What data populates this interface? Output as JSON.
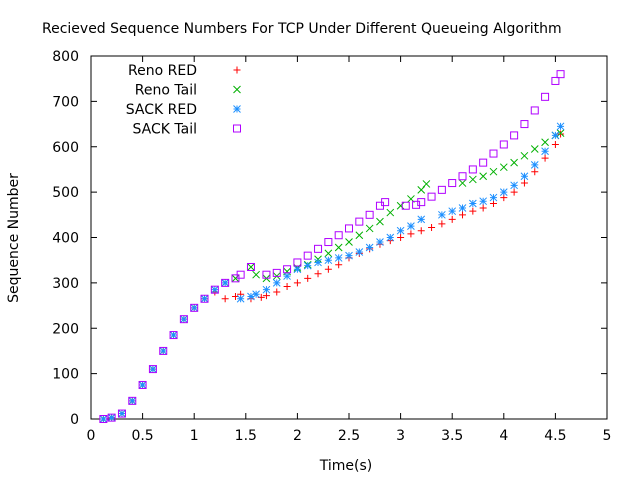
{
  "chart_data": {
    "type": "scatter",
    "title": "Recieved Sequence Numbers For TCP Under Different Queueing Algorithm",
    "xlabel": "Time(s)",
    "ylabel": "Sequence Number",
    "xlim": [
      0,
      5
    ],
    "ylim": [
      0,
      800
    ],
    "xticks": [
      "0",
      "0.5",
      "1",
      "1.5",
      "2",
      "2.5",
      "3",
      "3.5",
      "4",
      "4.5",
      "5"
    ],
    "yticks": [
      "0",
      "100",
      "200",
      "300",
      "400",
      "500",
      "600",
      "700",
      "800"
    ],
    "grid": false,
    "legend_position": "top-left",
    "series": [
      {
        "name": "Reno RED",
        "marker": "plus",
        "color": "#ff0000",
        "x": [
          0.12,
          0.2,
          0.3,
          0.4,
          0.5,
          0.6,
          0.7,
          0.8,
          0.9,
          1.0,
          1.1,
          1.2,
          1.3,
          1.4,
          1.45,
          1.55,
          1.65,
          1.7,
          1.8,
          1.9,
          2.0,
          2.1,
          2.2,
          2.3,
          2.4,
          2.5,
          2.6,
          2.7,
          2.8,
          2.9,
          3.0,
          3.1,
          3.2,
          3.3,
          3.4,
          3.5,
          3.6,
          3.7,
          3.8,
          3.9,
          4.0,
          4.1,
          4.2,
          4.3,
          4.4,
          4.5,
          4.55
        ],
        "y": [
          0,
          3,
          12,
          40,
          75,
          110,
          150,
          185,
          220,
          245,
          265,
          280,
          265,
          270,
          275,
          265,
          268,
          272,
          280,
          292,
          300,
          310,
          320,
          330,
          340,
          355,
          365,
          375,
          385,
          393,
          400,
          408,
          415,
          422,
          430,
          440,
          450,
          458,
          465,
          475,
          488,
          500,
          520,
          545,
          575,
          605,
          628
        ]
      },
      {
        "name": "Reno Tail",
        "marker": "cross",
        "color": "#00b000",
        "x": [
          0.12,
          0.2,
          0.3,
          0.4,
          0.5,
          0.6,
          0.7,
          0.8,
          0.9,
          1.0,
          1.1,
          1.2,
          1.3,
          1.4,
          1.55,
          1.6,
          1.7,
          1.8,
          1.9,
          2.0,
          2.1,
          2.2,
          2.3,
          2.4,
          2.5,
          2.6,
          2.7,
          2.8,
          2.9,
          3.0,
          3.1,
          3.2,
          3.25,
          3.6,
          3.7,
          3.8,
          3.9,
          4.0,
          4.1,
          4.2,
          4.3,
          4.4,
          4.5,
          4.55
        ],
        "y": [
          0,
          3,
          12,
          40,
          75,
          110,
          150,
          185,
          220,
          245,
          265,
          285,
          300,
          310,
          335,
          318,
          310,
          315,
          325,
          333,
          340,
          352,
          365,
          378,
          390,
          405,
          420,
          435,
          455,
          470,
          485,
          505,
          518,
          520,
          528,
          535,
          545,
          555,
          565,
          580,
          595,
          610,
          625,
          630
        ]
      },
      {
        "name": "SACK RED",
        "marker": "star",
        "color": "#1e90ff",
        "x": [
          0.12,
          0.2,
          0.3,
          0.4,
          0.5,
          0.6,
          0.7,
          0.8,
          0.9,
          1.0,
          1.1,
          1.2,
          1.3,
          1.45,
          1.55,
          1.6,
          1.7,
          1.8,
          1.9,
          2.0,
          2.1,
          2.2,
          2.3,
          2.4,
          2.5,
          2.6,
          2.7,
          2.8,
          2.9,
          3.0,
          3.1,
          3.2,
          3.4,
          3.5,
          3.6,
          3.7,
          3.8,
          3.9,
          4.0,
          4.1,
          4.2,
          4.3,
          4.4,
          4.5,
          4.55
        ],
        "y": [
          0,
          3,
          12,
          40,
          75,
          110,
          150,
          185,
          220,
          245,
          265,
          285,
          300,
          265,
          270,
          275,
          285,
          300,
          315,
          330,
          338,
          345,
          350,
          355,
          360,
          368,
          378,
          390,
          400,
          415,
          425,
          440,
          450,
          458,
          465,
          475,
          480,
          488,
          500,
          515,
          535,
          560,
          590,
          625,
          645
        ]
      },
      {
        "name": "SACK Tail",
        "marker": "square",
        "color": "#b000ff",
        "x": [
          0.12,
          0.2,
          0.3,
          0.4,
          0.5,
          0.6,
          0.7,
          0.8,
          0.9,
          1.0,
          1.1,
          1.2,
          1.3,
          1.4,
          1.45,
          1.55,
          1.7,
          1.8,
          1.9,
          2.0,
          2.1,
          2.2,
          2.3,
          2.4,
          2.5,
          2.6,
          2.7,
          2.8,
          2.85,
          3.05,
          3.15,
          3.2,
          3.3,
          3.4,
          3.5,
          3.6,
          3.7,
          3.8,
          3.9,
          4.0,
          4.1,
          4.2,
          4.3,
          4.4,
          4.5,
          4.55
        ],
        "y": [
          0,
          3,
          12,
          40,
          75,
          110,
          150,
          185,
          220,
          245,
          265,
          285,
          300,
          310,
          318,
          335,
          318,
          322,
          330,
          345,
          360,
          375,
          390,
          405,
          420,
          435,
          450,
          470,
          478,
          470,
          472,
          478,
          490,
          505,
          520,
          535,
          550,
          565,
          585,
          605,
          625,
          650,
          680,
          710,
          745,
          760
        ]
      }
    ]
  }
}
